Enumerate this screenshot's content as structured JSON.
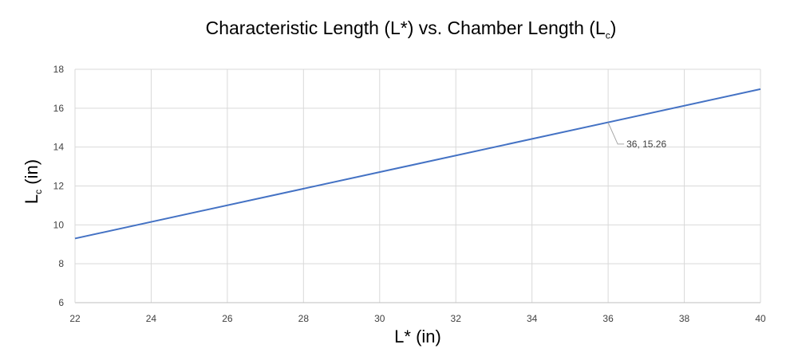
{
  "chart_data": {
    "type": "line",
    "title": "Characteristic Length (L*) vs. Chamber Length (L",
    "title_sub": "c",
    "title_end": ")",
    "xlabel": "L* (in)",
    "ylabel": "L",
    "ylabel_sub": "c",
    "ylabel_end": " (in)",
    "xlim": [
      22,
      40
    ],
    "ylim": [
      6,
      18
    ],
    "x_ticks": [
      22,
      24,
      26,
      28,
      30,
      32,
      34,
      36,
      38,
      40
    ],
    "y_ticks": [
      6,
      8,
      10,
      12,
      14,
      16,
      18
    ],
    "grid": true,
    "series": [
      {
        "color": "#4472c4",
        "x": [
          22,
          40
        ],
        "y": [
          9.3,
          16.98
        ]
      }
    ],
    "annotations": [
      {
        "x": 36,
        "y": 15.26,
        "text": "36, 15.26"
      }
    ]
  }
}
